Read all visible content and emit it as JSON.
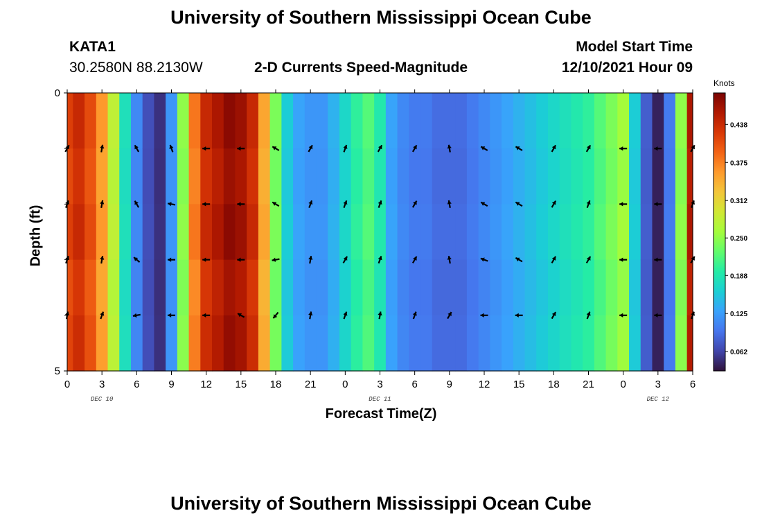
{
  "header": {
    "title": "University of Southern Mississippi Ocean Cube",
    "station": "KATA1",
    "coords": "30.2580N  88.2130W",
    "subtitle": "2-D Currents Speed-Magnitude",
    "model_label": "Model Start Time",
    "model_time": "12/10/2021 Hour 09"
  },
  "footer_title": "University of Southern Mississippi Ocean Cube",
  "colorbar": {
    "unit": "Knots",
    "ticks": [
      "0.438",
      "0.375",
      "0.312",
      "0.250",
      "0.188",
      "0.125",
      "0.062"
    ],
    "tick_values": [
      0.438,
      0.375,
      0.312,
      0.25,
      0.188,
      0.125,
      0.062
    ],
    "range": [
      0.03,
      0.49
    ],
    "colors": [
      "#30123b",
      "#4145ab",
      "#4675ed",
      "#39a2fc",
      "#1bcfd4",
      "#24eca6",
      "#61fc6c",
      "#a4fc3b",
      "#d1e834",
      "#f3c63a",
      "#fe9b2d",
      "#f36315",
      "#d93806",
      "#b11901",
      "#7a0403"
    ]
  },
  "chart_data": {
    "type": "heatmap",
    "title": "2-D Currents Speed-Magnitude",
    "xlabel": "Forecast Time(Z)",
    "ylabel": "Depth (ft)",
    "ylim": [
      0,
      5
    ],
    "y_tick_labels": [
      "0",
      "5"
    ],
    "x_tick_labels": [
      "0",
      "3",
      "6",
      "9",
      "12",
      "15",
      "18",
      "21",
      "0",
      "3",
      "6",
      "9",
      "12",
      "15",
      "18",
      "21",
      "0",
      "3",
      "6"
    ],
    "date_labels": [
      {
        "hours": 12,
        "label": "DEC 10"
      },
      {
        "hours": 36,
        "label": "DEC 11"
      },
      {
        "hours": 60,
        "label": "DEC 12"
      }
    ],
    "x_range_hours": [
      0,
      54
    ],
    "time_step_hours": 1,
    "speed_knots": [
      0.42,
      0.44,
      0.41,
      0.36,
      0.28,
      0.18,
      0.11,
      0.07,
      0.05,
      0.12,
      0.25,
      0.38,
      0.44,
      0.46,
      0.48,
      0.47,
      0.44,
      0.35,
      0.24,
      0.16,
      0.13,
      0.12,
      0.12,
      0.14,
      0.17,
      0.2,
      0.22,
      0.19,
      0.13,
      0.11,
      0.1,
      0.1,
      0.09,
      0.09,
      0.09,
      0.1,
      0.11,
      0.12,
      0.13,
      0.14,
      0.15,
      0.16,
      0.17,
      0.18,
      0.19,
      0.2,
      0.22,
      0.24,
      0.26,
      0.16,
      0.08,
      0.04,
      0.1,
      0.25,
      0.46
    ],
    "depth_levels_ft": [
      1,
      2,
      3,
      4,
      5
    ],
    "arrow_hours": [
      0,
      3,
      6,
      9,
      12,
      15,
      18,
      21,
      24,
      27,
      30,
      33,
      36,
      39,
      42,
      45,
      48,
      51,
      54
    ],
    "arrow_dir_deg": [
      [
        30,
        10,
        330,
        340,
        270,
        270,
        300,
        30,
        20,
        30,
        30,
        350,
        300,
        300,
        30,
        30,
        270,
        270,
        30
      ],
      [
        20,
        10,
        330,
        280,
        270,
        270,
        300,
        20,
        20,
        20,
        30,
        350,
        300,
        300,
        30,
        20,
        270,
        270,
        20
      ],
      [
        20,
        10,
        310,
        270,
        270,
        270,
        260,
        10,
        30,
        20,
        30,
        350,
        290,
        300,
        30,
        30,
        270,
        270,
        30
      ],
      [
        10,
        20,
        260,
        270,
        270,
        300,
        220,
        10,
        20,
        10,
        20,
        30,
        270,
        270,
        30,
        20,
        270,
        270,
        20
      ]
    ]
  }
}
